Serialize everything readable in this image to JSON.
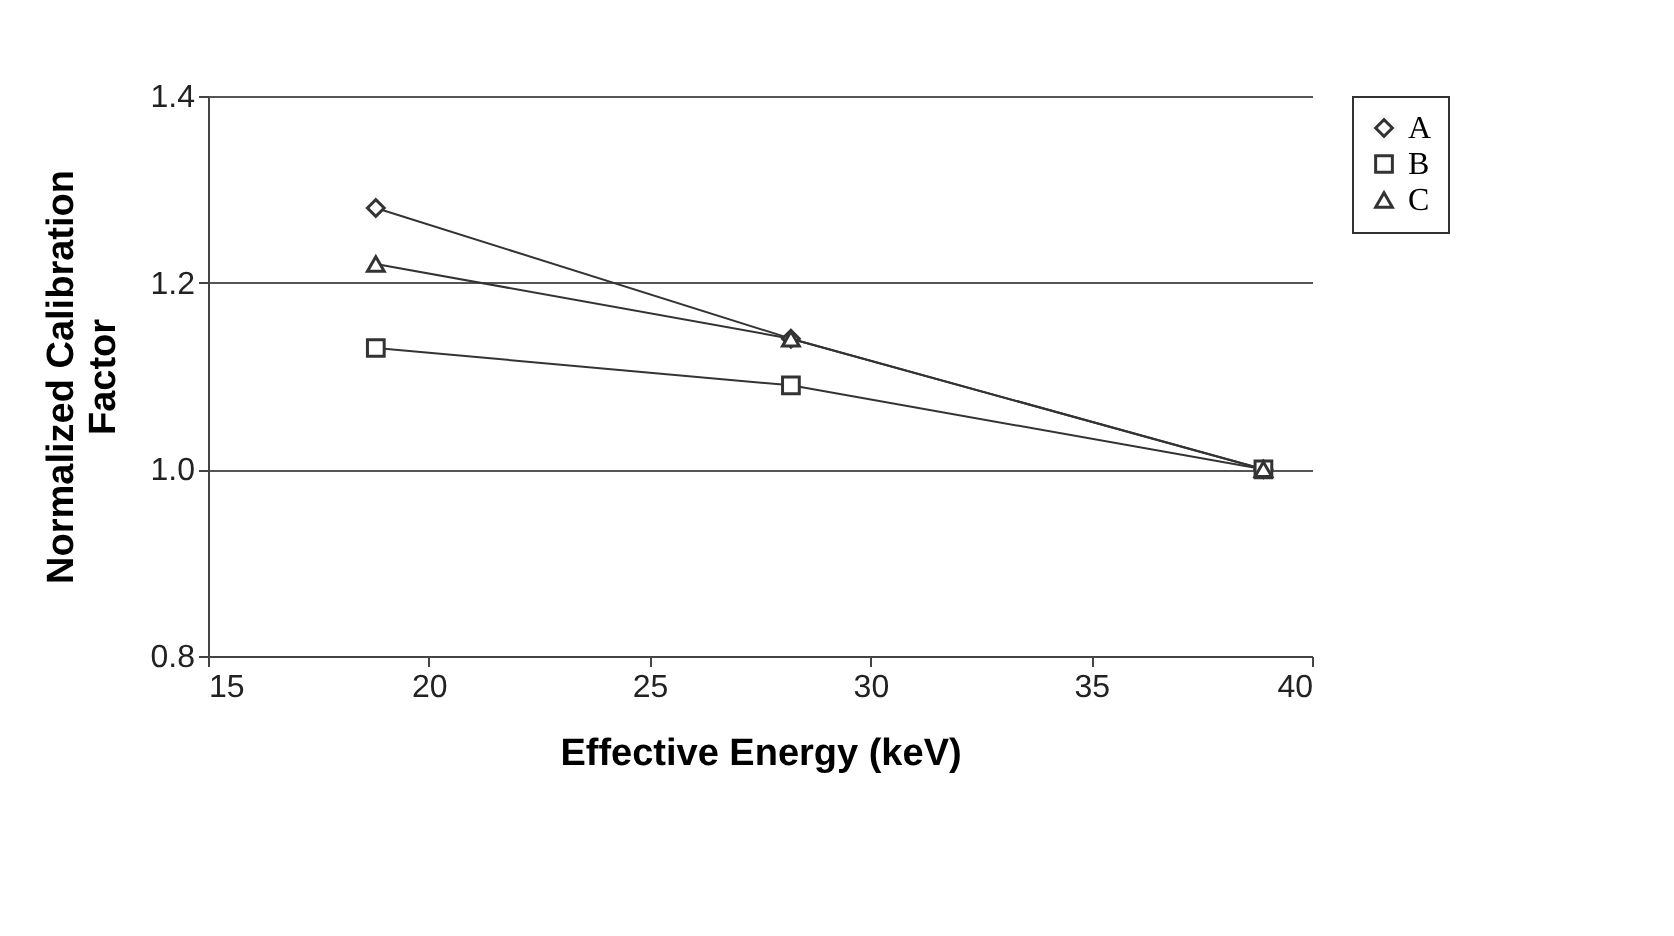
{
  "chart_data": {
    "type": "line",
    "xlabel": "Effective Energy (keV)",
    "ylabel": "Normalized Calibration Factor",
    "xlim": [
      15,
      40
    ],
    "xticks": [
      15,
      20,
      25,
      30,
      35,
      40
    ],
    "ylim": [
      0.8,
      1.4
    ],
    "yticks": [
      {
        "value": 0.8,
        "label": "0.8"
      },
      {
        "value": 1,
        "label": "1.0"
      },
      {
        "value": 1.2,
        "label": "1.2"
      },
      {
        "value": 1.4,
        "label": "1.4"
      }
    ],
    "grid": "y",
    "legend": "top right",
    "line_style": "solid",
    "series": [
      {
        "name": "A",
        "color": "#333333",
        "marker": "diamond",
        "x": [
          18.8,
          28.2,
          38.9
        ],
        "values": [
          1.28,
          1.14,
          1.0
        ]
      },
      {
        "name": "B",
        "color": "#333333",
        "marker": "square",
        "x": [
          18.8,
          28.2,
          38.9
        ],
        "values": [
          1.13,
          1.09,
          1.0
        ]
      },
      {
        "name": "C",
        "color": "#333333",
        "marker": "triangle",
        "x": [
          18.8,
          28.2,
          38.9
        ],
        "values": [
          1.22,
          1.14,
          1.0
        ]
      }
    ]
  }
}
